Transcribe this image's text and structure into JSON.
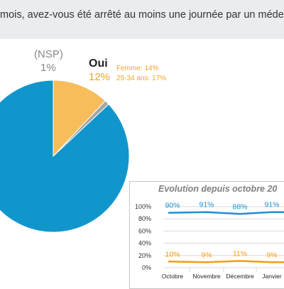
{
  "question": {
    "text": "mois, avez-vous été arrêté au moins une journée par un médecin"
  },
  "colors": {
    "non": "#1196cc",
    "oui": "#f7bd5b",
    "nsp": "#a6a6a6",
    "oui_text": "#f2a32b",
    "line_blue": "#1e90d0",
    "line_orange": "#f39c12",
    "grid": "#d9d9d9"
  },
  "chart_data": [
    {
      "type": "pie",
      "slices": [
        {
          "name": "Oui",
          "value": 12,
          "label": "12%"
        },
        {
          "name": "(NSP)",
          "value": 1,
          "label": "1%"
        },
        {
          "name": "",
          "value": 87,
          "label": ""
        }
      ],
      "annotations": [
        "Femme: 14%",
        "25-34 ans: 17%"
      ]
    },
    {
      "type": "line",
      "title": "Evolution depuis octobre 20",
      "categories": [
        "Octobre",
        "Novembre",
        "Décembre",
        "Janvier"
      ],
      "ylim": [
        0,
        100
      ],
      "yticks": [
        "0%",
        "20%",
        "40%",
        "60%",
        "80%",
        "100%"
      ],
      "grid": true,
      "series": [
        {
          "values": [
            90,
            91,
            88,
            91
          ],
          "labels": [
            "90%",
            "91%",
            "88%",
            "91%"
          ]
        },
        {
          "values": [
            10,
            9,
            11,
            9
          ],
          "labels": [
            "10%",
            "9%",
            "11%",
            "9%"
          ]
        }
      ]
    }
  ]
}
